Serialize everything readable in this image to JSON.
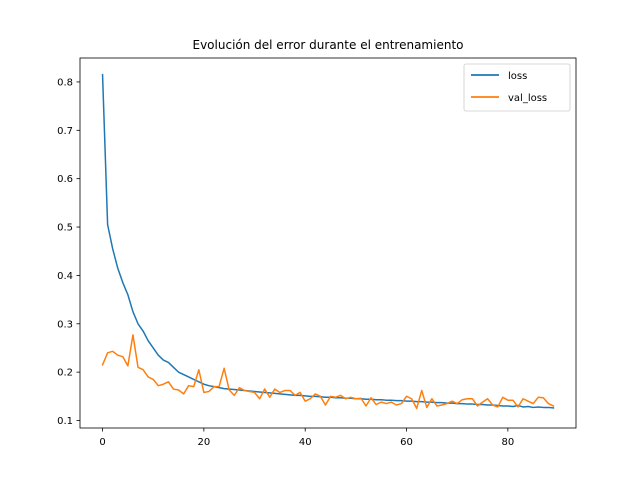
{
  "chart_data": {
    "type": "line",
    "title": "Evolución del error durante el entrenamiento",
    "xlabel": "",
    "ylabel": "",
    "xlim": [
      -4.45,
      93.45
    ],
    "ylim": [
      0.0845,
      0.8495
    ],
    "xticks": [
      0,
      20,
      40,
      60,
      80
    ],
    "yticks": [
      0.1,
      0.2,
      0.3,
      0.4,
      0.5,
      0.6,
      0.7,
      0.8
    ],
    "grid": false,
    "legend_position": "top-right",
    "x": [
      0,
      1,
      2,
      3,
      4,
      5,
      6,
      7,
      8,
      9,
      10,
      11,
      12,
      13,
      14,
      15,
      16,
      17,
      18,
      19,
      20,
      21,
      22,
      23,
      24,
      25,
      26,
      27,
      28,
      29,
      30,
      31,
      32,
      33,
      34,
      35,
      36,
      37,
      38,
      39,
      40,
      41,
      42,
      43,
      44,
      45,
      46,
      47,
      48,
      49,
      50,
      51,
      52,
      53,
      54,
      55,
      56,
      57,
      58,
      59,
      60,
      61,
      62,
      63,
      64,
      65,
      66,
      67,
      68,
      69,
      70,
      71,
      72,
      73,
      74,
      75,
      76,
      77,
      78,
      79,
      80,
      81,
      82,
      83,
      84,
      85,
      86,
      87,
      88,
      89
    ],
    "series": [
      {
        "name": "loss",
        "color": "#1f77b4",
        "values": [
          0.815,
          0.505,
          0.455,
          0.415,
          0.385,
          0.36,
          0.325,
          0.3,
          0.285,
          0.265,
          0.25,
          0.235,
          0.225,
          0.22,
          0.21,
          0.2,
          0.195,
          0.19,
          0.185,
          0.18,
          0.175,
          0.172,
          0.17,
          0.168,
          0.166,
          0.165,
          0.164,
          0.163,
          0.162,
          0.161,
          0.16,
          0.159,
          0.158,
          0.157,
          0.156,
          0.155,
          0.154,
          0.153,
          0.152,
          0.152,
          0.151,
          0.15,
          0.15,
          0.149,
          0.148,
          0.148,
          0.147,
          0.147,
          0.146,
          0.146,
          0.145,
          0.145,
          0.144,
          0.144,
          0.143,
          0.143,
          0.142,
          0.142,
          0.141,
          0.141,
          0.14,
          0.14,
          0.139,
          0.139,
          0.138,
          0.138,
          0.137,
          0.137,
          0.136,
          0.136,
          0.135,
          0.135,
          0.134,
          0.134,
          0.133,
          0.133,
          0.132,
          0.132,
          0.131,
          0.13,
          0.13,
          0.129,
          0.131,
          0.128,
          0.129,
          0.127,
          0.128,
          0.127,
          0.127,
          0.126
        ]
      },
      {
        "name": "val_loss",
        "color": "#ff7f0e",
        "values": [
          0.215,
          0.24,
          0.243,
          0.235,
          0.232,
          0.213,
          0.277,
          0.21,
          0.205,
          0.19,
          0.185,
          0.172,
          0.175,
          0.18,
          0.165,
          0.163,
          0.155,
          0.172,
          0.17,
          0.205,
          0.158,
          0.16,
          0.17,
          0.17,
          0.208,
          0.163,
          0.152,
          0.168,
          0.162,
          0.16,
          0.158,
          0.145,
          0.165,
          0.148,
          0.165,
          0.158,
          0.162,
          0.162,
          0.152,
          0.158,
          0.14,
          0.145,
          0.155,
          0.15,
          0.132,
          0.15,
          0.148,
          0.152,
          0.145,
          0.148,
          0.145,
          0.146,
          0.13,
          0.147,
          0.133,
          0.138,
          0.135,
          0.138,
          0.132,
          0.135,
          0.15,
          0.145,
          0.125,
          0.162,
          0.127,
          0.145,
          0.13,
          0.132,
          0.135,
          0.14,
          0.135,
          0.143,
          0.145,
          0.145,
          0.13,
          0.138,
          0.145,
          0.132,
          0.128,
          0.148,
          0.142,
          0.142,
          0.128,
          0.145,
          0.14,
          0.135,
          0.148,
          0.147,
          0.135,
          0.13
        ]
      }
    ]
  }
}
